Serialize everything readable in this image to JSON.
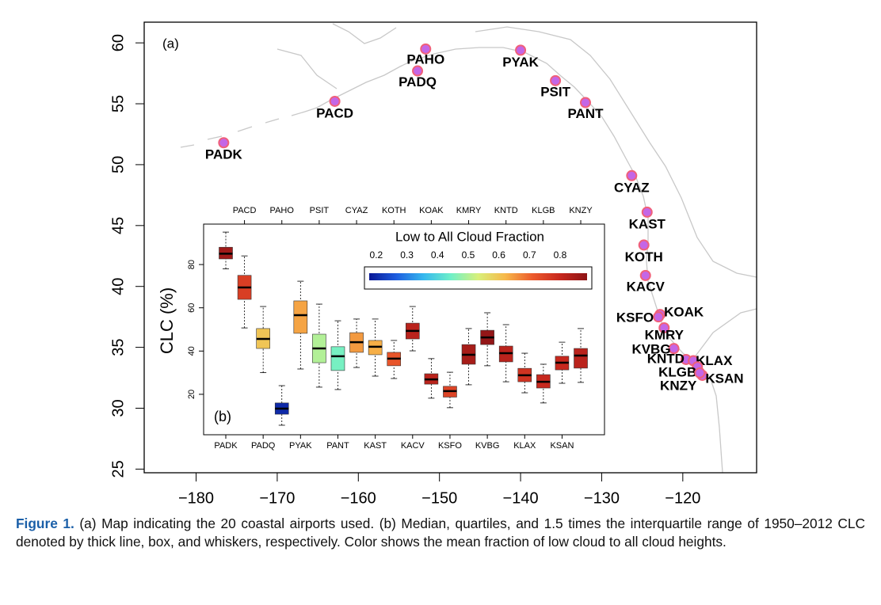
{
  "chart_data": [
    {
      "type": "map-scatter",
      "panel_label": "(a)",
      "xlim": [
        -186.4,
        -110.9
      ],
      "ylim": [
        24.7,
        61.7
      ],
      "xticks": [
        {
          "value": -180,
          "label": "−180"
        },
        {
          "value": -170,
          "label": "−170"
        },
        {
          "value": -160,
          "label": "−160"
        },
        {
          "value": -150,
          "label": "−150"
        },
        {
          "value": -140,
          "label": "−140"
        },
        {
          "value": -130,
          "label": "−130"
        },
        {
          "value": -120,
          "label": "−120"
        }
      ],
      "yticks": [
        25,
        30,
        35,
        40,
        45,
        50,
        55,
        60
      ],
      "color": "#c466e6",
      "edge_color": "#f0607a",
      "categories": [
        "PADK",
        "PACD",
        "PAHO",
        "PADQ",
        "PYAK",
        "PSIT",
        "PANT",
        "CYAZ",
        "KAST",
        "KOTH",
        "KACV",
        "KOAK",
        "KSFO",
        "KMRY",
        "KVBG",
        "KNTD",
        "KLAX",
        "KLGB",
        "KSAN",
        "KNZY"
      ],
      "x": [
        -176.6,
        -162.9,
        -151.7,
        -152.7,
        -140.0,
        -135.7,
        -132.0,
        -126.3,
        -124.4,
        -124.8,
        -124.6,
        -122.8,
        -123.0,
        -122.3,
        -121.1,
        -119.6,
        -118.7,
        -118.2,
        -117.6,
        -117.9
      ],
      "y": [
        51.8,
        55.2,
        59.5,
        57.7,
        59.4,
        56.9,
        55.1,
        49.1,
        46.1,
        43.4,
        40.9,
        37.7,
        37.5,
        36.6,
        34.9,
        34.0,
        33.9,
        33.4,
        32.7,
        32.9
      ]
    },
    {
      "type": "box",
      "panel_label": "(b)",
      "ylabel": "CLC (%)",
      "categories": [
        "PADK",
        "PACD",
        "PADQ",
        "PAHO",
        "PYAK",
        "PSIT",
        "PANT",
        "CYAZ",
        "KAST",
        "KOTH",
        "KACV",
        "KOAK",
        "KSFO",
        "KMRY",
        "KVBG",
        "KNTD",
        "KLAX",
        "KLGB",
        "KSAN",
        "KNZY"
      ],
      "whisker_low": [
        78.0,
        50.7,
        30.0,
        5.7,
        31.7,
        23.3,
        22.2,
        32.4,
        28.4,
        27.3,
        40.1,
        18.2,
        13.8,
        24.4,
        33.2,
        25.8,
        20.7,
        16.0,
        25.1,
        25.5
      ],
      "q1": [
        82.6,
        63.9,
        41.2,
        10.8,
        48.2,
        34.6,
        31.0,
        39.4,
        38.3,
        33.2,
        45.6,
        24.7,
        18.7,
        33.9,
        43.0,
        35.0,
        25.8,
        22.9,
        31.3,
        32.1
      ],
      "median": [
        85.0,
        69.4,
        45.6,
        13.4,
        56.6,
        41.2,
        37.6,
        44.1,
        42.0,
        36.5,
        49.3,
        26.9,
        21.5,
        38.3,
        46.3,
        39.0,
        28.8,
        25.8,
        34.6,
        37.9
      ],
      "q3": [
        88.0,
        75.0,
        50.4,
        16.0,
        63.2,
        47.8,
        42.0,
        48.5,
        44.9,
        39.4,
        52.9,
        29.5,
        23.7,
        43.0,
        49.6,
        42.3,
        32.0,
        29.1,
        37.6,
        41.2
      ],
      "whisker_high": [
        95.0,
        84.0,
        60.6,
        24.0,
        72.3,
        61.7,
        54.0,
        54.8,
        54.8,
        44.9,
        60.6,
        36.5,
        30.2,
        50.4,
        57.7,
        52.2,
        39.0,
        33.9,
        44.1,
        50.4
      ],
      "low_cloud_fraction": [
        0.86,
        0.76,
        0.6,
        0.2,
        0.64,
        0.5,
        0.45,
        0.65,
        0.63,
        0.72,
        0.82,
        0.82,
        0.75,
        0.85,
        0.88,
        0.82,
        0.78,
        0.8,
        0.8,
        0.82
      ],
      "ylim": [
        1.3,
        98.7
      ],
      "yticks": [
        20,
        40,
        60,
        80
      ],
      "colorbar": {
        "title": "Low to All Cloud Fraction",
        "lim": [
          0.177,
          0.888
        ],
        "ticks": [
          0.2,
          0.3,
          0.4,
          0.5,
          0.6,
          0.7,
          0.8
        ],
        "colors": [
          "#0a1896",
          "#1e5ee0",
          "#35b8ee",
          "#6ff0c8",
          "#d8f07a",
          "#f7b84a",
          "#ec5a2c",
          "#c8281e",
          "#8e1416"
        ]
      }
    }
  ],
  "caption": {
    "label": "Figure 1.",
    "text": "(a) Map indicating the 20 coastal airports used. (b) Median, quartiles, and 1.5 times the interquartile range of 1950–2012 CLC denoted by thick line, box, and whiskers, respectively. Color shows the mean fraction of low cloud to all cloud heights."
  }
}
